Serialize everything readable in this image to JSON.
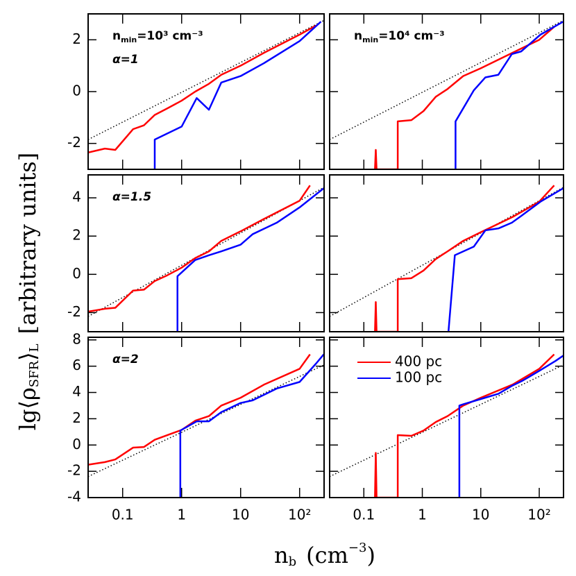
{
  "ylabel": {
    "main": "lg⟨ρ",
    "sub": "SFR",
    "close": "⟩",
    "sub2": "L",
    "rest": "[arbitrary units]"
  },
  "xlabel": {
    "base": "n",
    "sub": "b",
    "rest": "(cm",
    "sup": "−3",
    "close": ")"
  },
  "chart_data": [
    {
      "type": "line",
      "log_x": true,
      "xlim": [
        0.026,
        260
      ],
      "ylim": [
        -3,
        3
      ],
      "yticks": [
        -2,
        0,
        2
      ],
      "xticks": [
        0.1,
        1,
        10,
        {
          "value": 100,
          "label": "10²"
        }
      ],
      "show_xticklabels": false,
      "show_yticklabels": true,
      "note": {
        "base": "n",
        "sub": "min",
        "rest": "=10³ cm⁻³"
      },
      "label": "α=1",
      "reference": {
        "color": "#000000",
        "x": [
          0.026,
          260
        ],
        "values": [
          -1.85,
          2.75
        ]
      },
      "series": [
        {
          "color": "#ff0000",
          "x": [
            0.026,
            0.05,
            0.075,
            0.15,
            0.23,
            0.35,
            0.57,
            1,
            1.7,
            2.9,
            4.7,
            10,
            25,
            100,
            190
          ],
          "values": [
            -2.35,
            -2.2,
            -2.25,
            -1.45,
            -1.3,
            -0.9,
            -0.65,
            -0.35,
            0,
            0.3,
            0.65,
            1.0,
            1.5,
            2.2,
            2.55
          ]
        },
        {
          "color": "#0000ff",
          "x": [
            0.35,
            0.35,
            1,
            1.8,
            2.9,
            4.7,
            10,
            25,
            100,
            230
          ],
          "values": [
            -3,
            -1.85,
            -1.35,
            -0.25,
            -0.7,
            0.35,
            0.6,
            1.1,
            1.95,
            2.7
          ]
        }
      ]
    },
    {
      "type": "line",
      "log_x": true,
      "xlim": [
        0.026,
        260
      ],
      "ylim": [
        -3,
        3
      ],
      "yticks": [
        -2,
        0,
        2
      ],
      "xticks": [
        0.1,
        1,
        10,
        {
          "value": 100,
          "label": "10²"
        }
      ],
      "show_xticklabels": false,
      "show_yticklabels": false,
      "note": {
        "base": "n",
        "sub": "min",
        "rest": "=10⁴ cm⁻³"
      },
      "reference": {
        "color": "#000000",
        "x": [
          0.026,
          260
        ],
        "values": [
          -1.85,
          2.75
        ]
      },
      "series": [
        {
          "color": "#ff0000",
          "x": [
            0.155,
            0.16,
            0.165,
            0.38,
            0.38,
            0.65,
            1.05,
            1.7,
            2.7,
            5,
            10,
            35,
            100,
            180
          ],
          "values": [
            -3,
            -2.25,
            -3,
            -3,
            -1.15,
            -1.1,
            -0.75,
            -0.2,
            0.1,
            0.6,
            0.9,
            1.5,
            2.0,
            2.5
          ]
        },
        {
          "color": "#0000ff",
          "x": [
            3.7,
            3.7,
            7.6,
            12,
            20,
            34,
            49,
            105,
            257
          ],
          "values": [
            -3,
            -1.15,
            0.05,
            0.55,
            0.65,
            1.45,
            1.55,
            2.2,
            2.7
          ]
        }
      ]
    },
    {
      "type": "line",
      "log_x": true,
      "xlim": [
        0.026,
        260
      ],
      "ylim": [
        -3,
        5.2
      ],
      "yticks": [
        -2,
        0,
        2,
        4
      ],
      "xticks": [
        0.1,
        1,
        10,
        {
          "value": 100,
          "label": "10²"
        }
      ],
      "show_xticklabels": false,
      "show_yticklabels": true,
      "label": "α=1.5",
      "reference": {
        "color": "#000000",
        "x": [
          0.026,
          260
        ],
        "values": [
          -2.2,
          4.55
        ]
      },
      "series": [
        {
          "color": "#ff0000",
          "x": [
            0.026,
            0.05,
            0.075,
            0.15,
            0.23,
            0.35,
            0.57,
            1,
            1.7,
            2.9,
            4.7,
            10,
            25,
            100,
            150
          ],
          "values": [
            -1.95,
            -1.8,
            -1.75,
            -0.85,
            -0.8,
            -0.35,
            -0.05,
            0.35,
            0.85,
            1.2,
            1.75,
            2.25,
            2.9,
            3.85,
            4.65
          ]
        },
        {
          "color": "#0000ff",
          "x": [
            0.85,
            0.85,
            1.7,
            2.9,
            4.7,
            10,
            16,
            41,
            100,
            257
          ],
          "values": [
            -3,
            -0.1,
            0.75,
            1.0,
            1.2,
            1.55,
            2.1,
            2.7,
            3.5,
            4.5
          ]
        }
      ]
    },
    {
      "type": "line",
      "log_x": true,
      "xlim": [
        0.026,
        260
      ],
      "ylim": [
        -3,
        5.2
      ],
      "yticks": [
        -2,
        0,
        2,
        4
      ],
      "xticks": [
        0.1,
        1,
        10,
        {
          "value": 100,
          "label": "10²"
        }
      ],
      "show_xticklabels": false,
      "show_yticklabels": false,
      "reference": {
        "color": "#000000",
        "x": [
          0.026,
          260
        ],
        "values": [
          -2.2,
          4.55
        ]
      },
      "series": [
        {
          "color": "#ff0000",
          "x": [
            0.155,
            0.16,
            0.165,
            0.38,
            0.38,
            0.65,
            1.05,
            1.7,
            2.7,
            5,
            10,
            35,
            100,
            180
          ],
          "values": [
            -3,
            -1.45,
            -3,
            -3,
            -0.25,
            -0.2,
            0.2,
            0.8,
            1.2,
            1.75,
            2.2,
            3.0,
            3.8,
            4.65
          ]
        },
        {
          "color": "#0000ff",
          "x": [
            2.8,
            3.6,
            7.6,
            12,
            20,
            34,
            49,
            105,
            257
          ],
          "values": [
            -3,
            1.0,
            1.45,
            2.3,
            2.4,
            2.7,
            3.05,
            3.8,
            4.5
          ]
        }
      ]
    },
    {
      "type": "line",
      "log_x": true,
      "xlim": [
        0.026,
        260
      ],
      "ylim": [
        -4,
        8.2
      ],
      "yticks": [
        -4,
        -2,
        0,
        2,
        4,
        6,
        8
      ],
      "xticks": [
        0.1,
        1,
        10,
        {
          "value": 100,
          "label": "10²"
        }
      ],
      "show_xticklabels": true,
      "show_yticklabels": true,
      "label": "α=2",
      "reference": {
        "color": "#000000",
        "x": [
          0.026,
          260
        ],
        "values": [
          -2.4,
          6.1
        ]
      },
      "series": [
        {
          "color": "#ff0000",
          "x": [
            0.026,
            0.05,
            0.075,
            0.15,
            0.23,
            0.35,
            0.57,
            1,
            1.7,
            2.9,
            4.7,
            10,
            25,
            100,
            150
          ],
          "values": [
            -1.5,
            -1.3,
            -1.1,
            -0.2,
            -0.15,
            0.4,
            0.75,
            1.15,
            1.85,
            2.2,
            3.0,
            3.6,
            4.6,
            5.8,
            6.9
          ]
        },
        {
          "color": "#0000ff",
          "x": [
            0.95,
            0.95,
            1.8,
            2.9,
            4.7,
            10,
            16,
            41,
            100,
            190,
            257
          ],
          "values": [
            -4,
            1.1,
            1.8,
            1.8,
            2.5,
            3.2,
            3.4,
            4.3,
            4.8,
            6.2,
            6.9
          ]
        }
      ]
    },
    {
      "type": "line",
      "log_x": true,
      "xlim": [
        0.026,
        260
      ],
      "ylim": [
        -4,
        8.2
      ],
      "yticks": [
        -4,
        -2,
        0,
        2,
        4,
        6,
        8
      ],
      "xticks": [
        0.1,
        1,
        10,
        {
          "value": 100,
          "label": "10²"
        }
      ],
      "show_xticklabels": true,
      "show_yticklabels": false,
      "legend": "upper left",
      "reference": {
        "color": "#000000",
        "x": [
          0.026,
          260
        ],
        "values": [
          -2.4,
          6.1
        ]
      },
      "series": [
        {
          "name": "400 pc",
          "color": "#ff0000",
          "x": [
            0.155,
            0.16,
            0.165,
            0.38,
            0.38,
            0.65,
            1.05,
            1.7,
            2.7,
            5,
            10,
            35,
            100,
            180
          ],
          "values": [
            -4,
            -0.6,
            -4,
            -4,
            0.75,
            0.7,
            1.1,
            1.75,
            2.2,
            3.0,
            3.6,
            4.6,
            5.8,
            6.9
          ]
        },
        {
          "name": "100 pc",
          "color": "#0000ff",
          "x": [
            4.3,
            4.3,
            5,
            10,
            20,
            34,
            52,
            105,
            190,
            257
          ],
          "values": [
            -4,
            3.0,
            3.1,
            3.5,
            3.9,
            4.5,
            4.9,
            5.7,
            6.4,
            6.8
          ]
        }
      ]
    }
  ]
}
